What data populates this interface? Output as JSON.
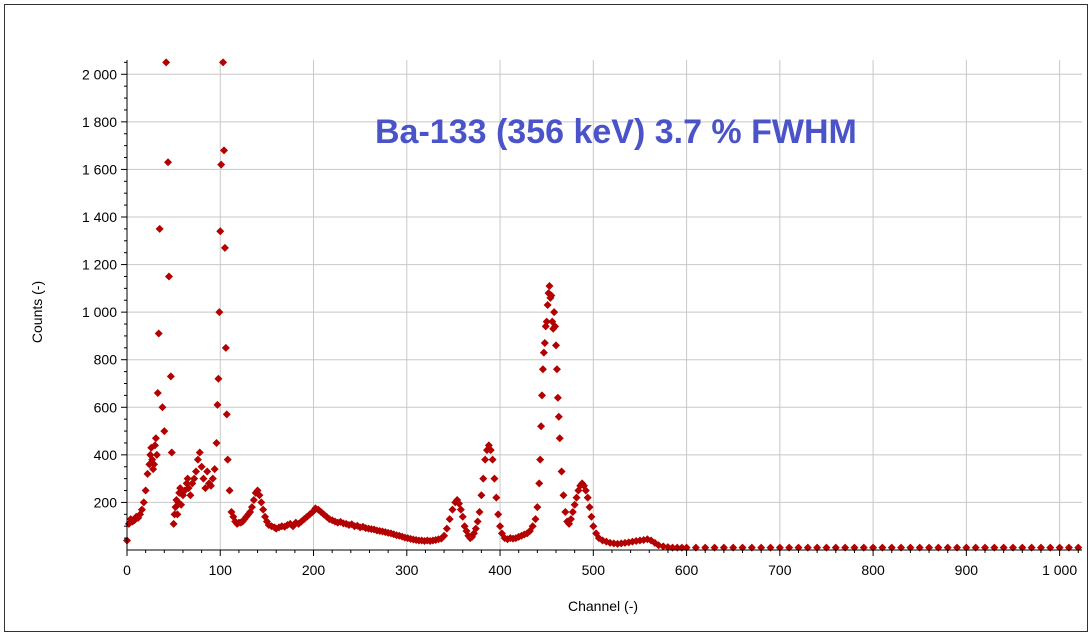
{
  "chart_data": {
    "type": "scatter",
    "title": "",
    "annotation": "Ba-133 (356 keV) 3.7 % FWHM",
    "xlabel": "Channel (-)",
    "ylabel": "Counts (-)",
    "xlim": [
      0,
      1024
    ],
    "ylim": [
      0,
      2060
    ],
    "x_ticks": [
      0,
      100,
      200,
      300,
      400,
      500,
      600,
      700,
      800,
      900,
      1000
    ],
    "x_tick_labels": [
      "0",
      "100",
      "200",
      "300",
      "400",
      "500",
      "600",
      "700",
      "800",
      "900",
      "1 000"
    ],
    "y_ticks": [
      200,
      400,
      600,
      800,
      1000,
      1200,
      1400,
      1600,
      1800,
      2000
    ],
    "y_tick_labels": [
      "200",
      "400",
      "600",
      "800",
      "1 000",
      "1 200",
      "1 400",
      "1 600",
      "1 800",
      "2 000"
    ],
    "grid": true,
    "legend": "none",
    "colors": {
      "marker": "#b30000",
      "annotation": "#4a54c8",
      "grid": "#c8c8c8",
      "axis": "#000000"
    },
    "series": [
      {
        "marker": "diamond",
        "points": [
          [
            0,
            40
          ],
          [
            2,
            110
          ],
          [
            4,
            130
          ],
          [
            6,
            120
          ],
          [
            8,
            125
          ],
          [
            10,
            140
          ],
          [
            12,
            135
          ],
          [
            14,
            150
          ],
          [
            16,
            170
          ],
          [
            18,
            200
          ],
          [
            20,
            250
          ],
          [
            22,
            320
          ],
          [
            24,
            360
          ],
          [
            25,
            400
          ],
          [
            26,
            430
          ],
          [
            27,
            380
          ],
          [
            28,
            340
          ],
          [
            29,
            360
          ],
          [
            30,
            440
          ],
          [
            31,
            470
          ],
          [
            32,
            400
          ],
          [
            33,
            660
          ],
          [
            34,
            910
          ],
          [
            35,
            1350
          ],
          [
            38,
            600
          ],
          [
            40,
            500
          ],
          [
            42,
            2050
          ],
          [
            44,
            1630
          ],
          [
            45,
            1150
          ],
          [
            47,
            730
          ],
          [
            48,
            410
          ],
          [
            50,
            110
          ],
          [
            51,
            150
          ],
          [
            52,
            180
          ],
          [
            53,
            210
          ],
          [
            54,
            150
          ],
          [
            55,
            200
          ],
          [
            56,
            240
          ],
          [
            57,
            260
          ],
          [
            58,
            190
          ],
          [
            60,
            230
          ],
          [
            62,
            250
          ],
          [
            64,
            280
          ],
          [
            65,
            300
          ],
          [
            66,
            260
          ],
          [
            68,
            230
          ],
          [
            70,
            280
          ],
          [
            72,
            300
          ],
          [
            74,
            330
          ],
          [
            76,
            380
          ],
          [
            78,
            410
          ],
          [
            80,
            350
          ],
          [
            82,
            300
          ],
          [
            84,
            260
          ],
          [
            86,
            330
          ],
          [
            88,
            280
          ],
          [
            90,
            270
          ],
          [
            92,
            300
          ],
          [
            94,
            340
          ],
          [
            96,
            450
          ],
          [
            97,
            610
          ],
          [
            98,
            720
          ],
          [
            99,
            1000
          ],
          [
            100,
            1340
          ],
          [
            101,
            1620
          ],
          [
            103,
            2050
          ],
          [
            104,
            1680
          ],
          [
            105,
            1270
          ],
          [
            106,
            850
          ],
          [
            107,
            570
          ],
          [
            108,
            380
          ],
          [
            110,
            250
          ],
          [
            112,
            160
          ],
          [
            114,
            140
          ],
          [
            116,
            120
          ],
          [
            118,
            110
          ],
          [
            120,
            115
          ],
          [
            122,
            115
          ],
          [
            124,
            120
          ],
          [
            126,
            130
          ],
          [
            128,
            140
          ],
          [
            130,
            150
          ],
          [
            132,
            160
          ],
          [
            134,
            180
          ],
          [
            136,
            210
          ],
          [
            138,
            240
          ],
          [
            140,
            250
          ],
          [
            142,
            230
          ],
          [
            144,
            200
          ],
          [
            146,
            170
          ],
          [
            148,
            140
          ],
          [
            150,
            120
          ],
          [
            152,
            105
          ],
          [
            155,
            100
          ],
          [
            158,
            95
          ],
          [
            160,
            90
          ],
          [
            163,
            95
          ],
          [
            166,
            100
          ],
          [
            169,
            98
          ],
          [
            172,
            105
          ],
          [
            175,
            110
          ],
          [
            178,
            100
          ],
          [
            181,
            115
          ],
          [
            184,
            110
          ],
          [
            187,
            120
          ],
          [
            190,
            130
          ],
          [
            193,
            140
          ],
          [
            196,
            150
          ],
          [
            199,
            160
          ],
          [
            202,
            175
          ],
          [
            205,
            170
          ],
          [
            208,
            160
          ],
          [
            211,
            150
          ],
          [
            214,
            140
          ],
          [
            217,
            130
          ],
          [
            220,
            125
          ],
          [
            223,
            120
          ],
          [
            226,
            115
          ],
          [
            229,
            118
          ],
          [
            232,
            112
          ],
          [
            235,
            110
          ],
          [
            238,
            105
          ],
          [
            241,
            108
          ],
          [
            244,
            100
          ],
          [
            247,
            102
          ],
          [
            250,
            95
          ],
          [
            253,
            98
          ],
          [
            256,
            92
          ],
          [
            259,
            90
          ],
          [
            262,
            88
          ],
          [
            265,
            86
          ],
          [
            268,
            82
          ],
          [
            271,
            80
          ],
          [
            274,
            78
          ],
          [
            277,
            75
          ],
          [
            280,
            72
          ],
          [
            283,
            70
          ],
          [
            286,
            66
          ],
          [
            289,
            62
          ],
          [
            292,
            60
          ],
          [
            295,
            56
          ],
          [
            298,
            52
          ],
          [
            301,
            50
          ],
          [
            304,
            47
          ],
          [
            307,
            44
          ],
          [
            310,
            42
          ],
          [
            313,
            40
          ],
          [
            316,
            40
          ],
          [
            319,
            38
          ],
          [
            322,
            40
          ],
          [
            325,
            38
          ],
          [
            328,
            40
          ],
          [
            331,
            42
          ],
          [
            334,
            45
          ],
          [
            337,
            48
          ],
          [
            340,
            60
          ],
          [
            343,
            90
          ],
          [
            346,
            130
          ],
          [
            349,
            170
          ],
          [
            352,
            200
          ],
          [
            354,
            210
          ],
          [
            356,
            195
          ],
          [
            358,
            170
          ],
          [
            360,
            140
          ],
          [
            362,
            100
          ],
          [
            364,
            80
          ],
          [
            366,
            60
          ],
          [
            368,
            50
          ],
          [
            370,
            55
          ],
          [
            372,
            70
          ],
          [
            374,
            90
          ],
          [
            376,
            120
          ],
          [
            378,
            160
          ],
          [
            380,
            230
          ],
          [
            382,
            300
          ],
          [
            384,
            380
          ],
          [
            386,
            420
          ],
          [
            388,
            440
          ],
          [
            390,
            420
          ],
          [
            392,
            380
          ],
          [
            394,
            300
          ],
          [
            396,
            220
          ],
          [
            398,
            150
          ],
          [
            400,
            100
          ],
          [
            402,
            70
          ],
          [
            405,
            50
          ],
          [
            408,
            45
          ],
          [
            411,
            50
          ],
          [
            414,
            48
          ],
          [
            417,
            50
          ],
          [
            420,
            55
          ],
          [
            423,
            60
          ],
          [
            426,
            65
          ],
          [
            429,
            70
          ],
          [
            432,
            80
          ],
          [
            435,
            100
          ],
          [
            438,
            130
          ],
          [
            440,
            180
          ],
          [
            442,
            280
          ],
          [
            443,
            380
          ],
          [
            444,
            520
          ],
          [
            445,
            650
          ],
          [
            446,
            760
          ],
          [
            447,
            830
          ],
          [
            448,
            870
          ],
          [
            449,
            940
          ],
          [
            450,
            960
          ],
          [
            451,
            1030
          ],
          [
            452,
            1080
          ],
          [
            453,
            1110
          ],
          [
            454,
            1060
          ],
          [
            455,
            1070
          ],
          [
            456,
            960
          ],
          [
            457,
            930
          ],
          [
            458,
            1000
          ],
          [
            459,
            940
          ],
          [
            460,
            860
          ],
          [
            461,
            760
          ],
          [
            462,
            640
          ],
          [
            463,
            560
          ],
          [
            464,
            470
          ],
          [
            466,
            330
          ],
          [
            468,
            230
          ],
          [
            470,
            160
          ],
          [
            472,
            120
          ],
          [
            474,
            110
          ],
          [
            476,
            130
          ],
          [
            478,
            160
          ],
          [
            480,
            190
          ],
          [
            482,
            220
          ],
          [
            484,
            250
          ],
          [
            486,
            270
          ],
          [
            488,
            280
          ],
          [
            490,
            270
          ],
          [
            492,
            250
          ],
          [
            494,
            220
          ],
          [
            496,
            180
          ],
          [
            498,
            140
          ],
          [
            500,
            100
          ],
          [
            503,
            70
          ],
          [
            506,
            50
          ],
          [
            510,
            40
          ],
          [
            514,
            35
          ],
          [
            518,
            30
          ],
          [
            522,
            28
          ],
          [
            526,
            26
          ],
          [
            530,
            28
          ],
          [
            534,
            30
          ],
          [
            538,
            32
          ],
          [
            542,
            35
          ],
          [
            546,
            38
          ],
          [
            550,
            40
          ],
          [
            554,
            42
          ],
          [
            558,
            45
          ],
          [
            562,
            40
          ],
          [
            566,
            30
          ],
          [
            570,
            20
          ],
          [
            575,
            15
          ],
          [
            580,
            12
          ],
          [
            585,
            10
          ],
          [
            590,
            10
          ],
          [
            595,
            10
          ],
          [
            600,
            10
          ],
          [
            610,
            10
          ],
          [
            620,
            10
          ],
          [
            630,
            10
          ],
          [
            640,
            10
          ],
          [
            650,
            10
          ],
          [
            660,
            10
          ],
          [
            670,
            10
          ],
          [
            680,
            10
          ],
          [
            690,
            10
          ],
          [
            700,
            10
          ],
          [
            710,
            10
          ],
          [
            720,
            10
          ],
          [
            730,
            10
          ],
          [
            740,
            10
          ],
          [
            750,
            10
          ],
          [
            760,
            10
          ],
          [
            770,
            10
          ],
          [
            780,
            10
          ],
          [
            790,
            10
          ],
          [
            800,
            10
          ],
          [
            810,
            10
          ],
          [
            820,
            10
          ],
          [
            830,
            10
          ],
          [
            840,
            10
          ],
          [
            850,
            10
          ],
          [
            860,
            10
          ],
          [
            870,
            10
          ],
          [
            880,
            10
          ],
          [
            890,
            10
          ],
          [
            900,
            10
          ],
          [
            910,
            10
          ],
          [
            920,
            10
          ],
          [
            930,
            10
          ],
          [
            940,
            10
          ],
          [
            950,
            10
          ],
          [
            960,
            10
          ],
          [
            970,
            10
          ],
          [
            980,
            10
          ],
          [
            990,
            10
          ],
          [
            1000,
            10
          ],
          [
            1010,
            10
          ],
          [
            1020,
            10
          ]
        ]
      }
    ]
  }
}
